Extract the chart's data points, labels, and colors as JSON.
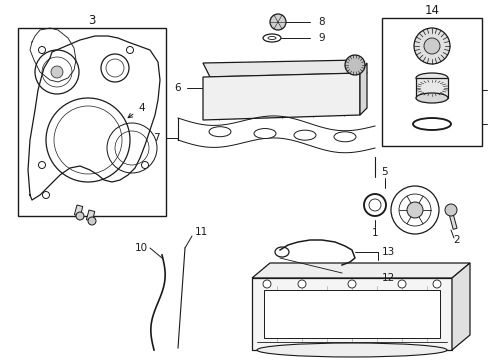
{
  "bg_color": "#ffffff",
  "line_color": "#1a1a1a",
  "figsize": [
    4.89,
    3.6
  ],
  "dpi": 100,
  "font_size": 7.5,
  "lw_main": 0.9
}
